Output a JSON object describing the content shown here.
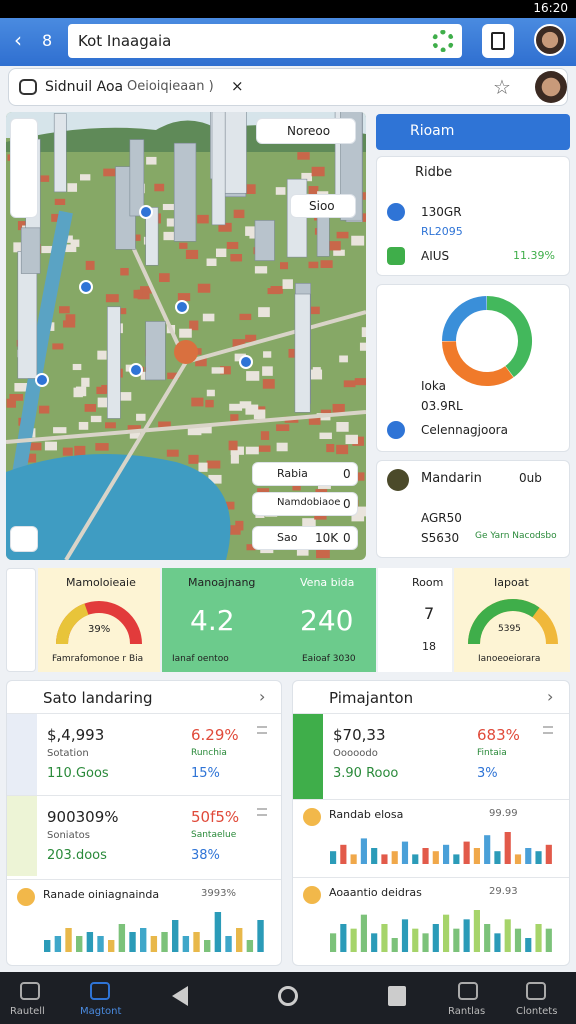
{
  "status_bar": {
    "time": "16:20"
  },
  "app_bar": {
    "back_label": "8",
    "search": "Kot Inaagaia"
  },
  "location_bar": {
    "name": "Sidnuil Aoa",
    "detail": "Oeioiqieaan )",
    "close": "×"
  },
  "map": {
    "chips": [
      "Noreoo",
      "Sioo"
    ],
    "legend": [
      {
        "label": "Rabia",
        "value": "0"
      },
      {
        "label": "Namdobiaoe",
        "value": "0"
      },
      {
        "label": "Sao",
        "value": "10K",
        "extra": "0"
      }
    ]
  },
  "side_panel": {
    "title": "Rioam",
    "summary": {
      "title": "Ridbe",
      "code": "130GR",
      "sub": "RL2095",
      "status": "AIUS",
      "badge": "11.39%"
    },
    "donut": {
      "values": [
        40,
        35,
        25
      ],
      "colors": [
        "#43b85c",
        "#f07a2a",
        "#3a8fd9"
      ],
      "labels": [
        "Ioka",
        "03.9RL",
        "Celennagjoora"
      ]
    },
    "language": {
      "title": "Mandarin",
      "badge": "0ub",
      "value": "AGR50",
      "sub": "S5630",
      "note": "Ge Yarn Nacodsbo"
    }
  },
  "metrics": [
    {
      "title": "Mamoloieaie",
      "gauge": 39,
      "label": "39%",
      "footer": "Famrafomonoe r Bia"
    },
    {
      "title": "Manoajnang",
      "value": "4.2",
      "footer": "Ianaf oentoo"
    },
    {
      "title": "Vena bida",
      "value": "240",
      "footer": "Eaioaf 3030"
    },
    {
      "title": "Room",
      "value": "7",
      "sub": "18"
    },
    {
      "title": "Iapoat",
      "gauge": 70,
      "label": "5395",
      "footer": "Ianoeoeiorara"
    }
  ],
  "panels": [
    {
      "title": "Sato landaring",
      "rows": [
        {
          "amount": "$,4,993",
          "sub": "Sotation",
          "count": "110.Goos",
          "pct": "6.29%",
          "pct_sub": "Runchia",
          "pct2": "15%"
        },
        {
          "amount": "900309%",
          "sub": "Soniatos",
          "count": "203.doos",
          "pct": "50f5%",
          "pct_sub": "Santaelue",
          "pct2": "38%"
        }
      ],
      "charts": [
        {
          "title": "Ranade oiniagnainda",
          "label": "3993%",
          "values": [
            3,
            4,
            6,
            4,
            5,
            4,
            3,
            7,
            5,
            6,
            4,
            5,
            8,
            4,
            5,
            3,
            10,
            4,
            6,
            3,
            8
          ],
          "colors": [
            "#2b9bb8",
            "#3fa7c9",
            "#e8b84a",
            "#7cc27a"
          ]
        }
      ]
    },
    {
      "title": "Pimajanton",
      "rows": [
        {
          "amount": "$70,33",
          "sub": "Ooooodo",
          "count": "3.90 Rooo",
          "pct": "683%",
          "pct_sub": "Fintaia",
          "pct2": "3%"
        }
      ],
      "charts": [
        {
          "title": "Randab elosa",
          "label": "99.99",
          "values": [
            4,
            6,
            3,
            8,
            5,
            3,
            4,
            7,
            3,
            5,
            4,
            6,
            3,
            7,
            5,
            9,
            4,
            10,
            3,
            5,
            4,
            6
          ],
          "colors": [
            "#2b9bb8",
            "#e25a4a",
            "#f0a84a",
            "#4aa0d8"
          ]
        },
        {
          "title": "Aoaantio deidras",
          "label": "29.93",
          "values": [
            4,
            6,
            5,
            8,
            4,
            6,
            3,
            7,
            5,
            4,
            6,
            8,
            5,
            7,
            9,
            6,
            4,
            7,
            5,
            3,
            6,
            5
          ],
          "colors": [
            "#7cc27a",
            "#2b9bb8",
            "#a6d46a"
          ]
        }
      ]
    }
  ],
  "nav": [
    "Rautell",
    "Magtont",
    "Rantlas",
    "Clontets"
  ]
}
